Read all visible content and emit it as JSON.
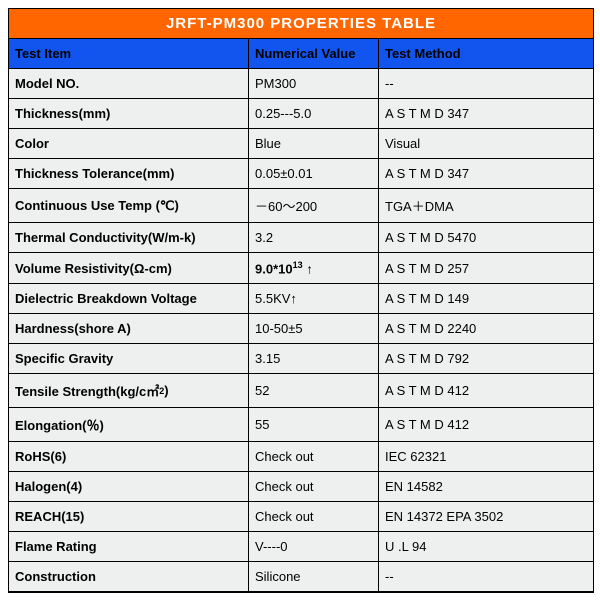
{
  "title": "JRFT-PM300  PROPERTIES  TABLE",
  "headers": [
    "Test Item",
    "Numerical Value",
    "Test Method"
  ],
  "rows": [
    {
      "item": "Model NO.",
      "value": "PM300",
      "method": "--"
    },
    {
      "item": "Thickness(mm)",
      "value": "0.25---5.0",
      "method": "A S T M  D  347"
    },
    {
      "item": "Color",
      "value": "Blue",
      "method": "Visual"
    },
    {
      "item": "Thickness Tolerance(mm)",
      "value": "0.05±0.01",
      "method": "A S T M  D  347"
    },
    {
      "item": "Continuous Use Temp (℃)",
      "value": "－60～200",
      "method": "TGA＋DMA"
    },
    {
      "item": "Thermal Conductivity(W/m-k)",
      "value": "3.2",
      "method": "A S T M  D  5470"
    },
    {
      "item": "Volume Resistivity(Ω-cm)",
      "value_html": "<span class='bold-val'>9.0*10<sup>13</sup> ↑</span>",
      "method": "A S T M  D  257"
    },
    {
      "item": "Dielectric Breakdown Voltage",
      "value": "5.5KV↑",
      "method": "A S T M  D  149"
    },
    {
      "item": "Hardness(shore A)",
      "value": "10-50±5",
      "method": "A S T M  D  2240"
    },
    {
      "item": "Specific Gravity",
      "value": "3.15",
      "method": "A S T M  D  792"
    },
    {
      "item_html": "Tensile Strength(kg/c㎡<sup>2</sup>)",
      "value": "52",
      "method": "A S T M  D  412"
    },
    {
      "item": "Elongation(％)",
      "value": "55",
      "method": "A S T M  D  412"
    },
    {
      "item": "RoHS(6)",
      "value": "Check out",
      "method": "IEC 62321"
    },
    {
      "item": "Halogen(4)",
      "value": "Check out",
      "method": "EN 14582"
    },
    {
      "item": "REACH(15)",
      "value": "Check out",
      "method": "EN 14372 EPA 3502"
    },
    {
      "item": "Flame Rating",
      "value": "V----0",
      "method": "U .L 94"
    },
    {
      "item": "Construction",
      "value": "Silicone",
      "method": "--"
    }
  ],
  "colors": {
    "title_bg": "#ff6600",
    "header_bg": "#1155ee",
    "row_bg": "#eef0f0",
    "border": "#000000"
  }
}
